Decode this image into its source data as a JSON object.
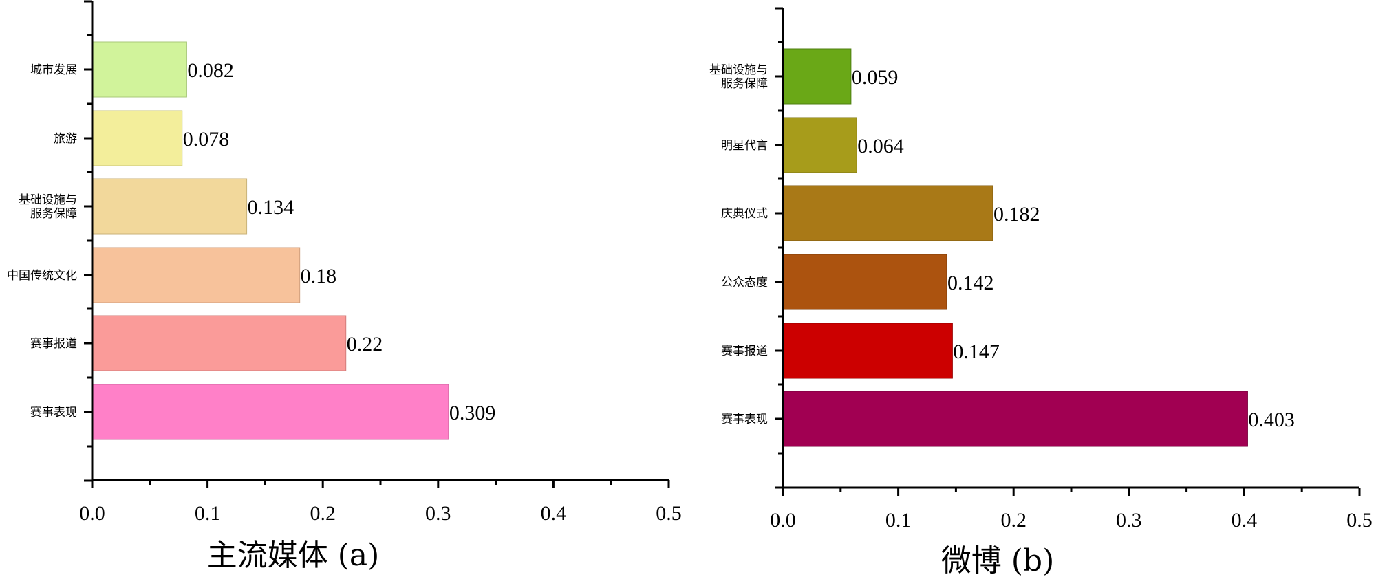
{
  "chart_data": [
    {
      "type": "bar",
      "orientation": "horizontal",
      "xlabel": "主流媒体 (a)",
      "xlim": [
        0,
        0.5
      ],
      "xticks": [
        "0.0",
        "0.1",
        "0.2",
        "0.3",
        "0.4",
        "0.5"
      ],
      "categories": [
        [
          "城市发展"
        ],
        [
          "旅游"
        ],
        [
          "基础设施与",
          "服务保障"
        ],
        [
          "中国传统文化"
        ],
        [
          "赛事报道"
        ],
        [
          "赛事表现"
        ]
      ],
      "values": [
        0.082,
        0.078,
        0.134,
        0.18,
        0.22,
        0.309
      ],
      "value_labels": [
        "0.082",
        "0.078",
        "0.134",
        "0.18",
        "0.22",
        "0.309"
      ],
      "colors": [
        "#d1f39b",
        "#f3ee9b",
        "#f2d89b",
        "#f7c29b",
        "#fa9b99",
        "#ff80c8"
      ],
      "edge_colors": [
        "#a9c97a",
        "#c9c47a",
        "#c9b27a",
        "#d09f7c",
        "#d27c7a",
        "#d066a2"
      ]
    },
    {
      "type": "bar",
      "orientation": "horizontal",
      "xlabel": "微博 (b)",
      "xlim": [
        0,
        0.5
      ],
      "xticks": [
        "0.0",
        "0.1",
        "0.2",
        "0.3",
        "0.4",
        "0.5"
      ],
      "categories": [
        [
          "基础设施与",
          "服务保障"
        ],
        [
          "明星代言"
        ],
        [
          "庆典仪式"
        ],
        [
          "公众态度"
        ],
        [
          "赛事报道"
        ],
        [
          "赛事表现"
        ]
      ],
      "values": [
        0.059,
        0.064,
        0.182,
        0.142,
        0.147,
        0.403
      ],
      "value_labels": [
        "0.059",
        "0.064",
        "0.182",
        "0.142",
        "0.147",
        "0.403"
      ],
      "colors": [
        "#6aa817",
        "#a79c1b",
        "#a97917",
        "#ac530f",
        "#cc0000",
        "#a10052"
      ],
      "edge_colors": [
        "#4f7f10",
        "#7f7614",
        "#805b11",
        "#823f0b",
        "#990000",
        "#78003d"
      ]
    }
  ]
}
